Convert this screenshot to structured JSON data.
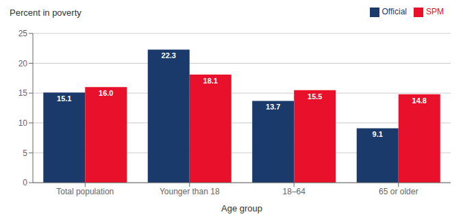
{
  "chart_data": {
    "type": "bar",
    "xlabel": "Age group",
    "ylabel": "Percent in poverty",
    "categories": [
      "Total population",
      "Younger than 18",
      "18–64",
      "65 or older"
    ],
    "series": [
      {
        "name": "Official",
        "color": "#1a3a6b",
        "values": [
          15.1,
          22.3,
          13.7,
          9.1
        ]
      },
      {
        "name": "SPM",
        "color": "#e8102a",
        "values": [
          16.0,
          18.1,
          15.5,
          14.8
        ],
        "value_labels": [
          "16.0",
          "18.1",
          "15.5",
          "14.8"
        ]
      }
    ],
    "ylim": [
      0,
      25
    ],
    "yticks": [
      0,
      5,
      10,
      15,
      20,
      25
    ],
    "grid": true,
    "legend": "upper right",
    "data_labels": true
  }
}
